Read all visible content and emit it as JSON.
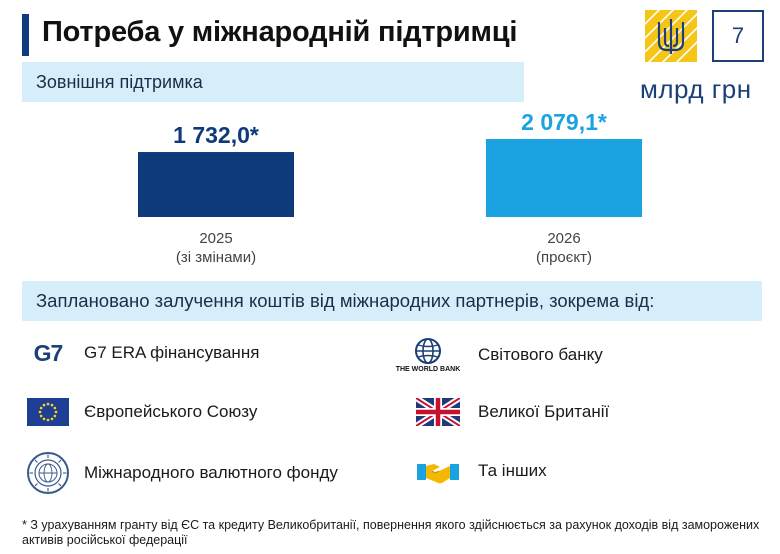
{
  "header": {
    "title": "Потреба у міжнародній підтримці",
    "page_number": "7",
    "unit": "млрд грн"
  },
  "section_external": {
    "label": "Зовнішня підтримка"
  },
  "chart_data": {
    "type": "bar",
    "categories": [
      "2025",
      "2026"
    ],
    "category_notes": [
      "(зі змінами)",
      "(проєкт)"
    ],
    "values": [
      1732.0,
      2079.1
    ],
    "value_labels": [
      "1 732,0*",
      "2 079,1*"
    ],
    "colors": [
      "#0e3a7b",
      "#1aa3e0"
    ]
  },
  "section_partners": {
    "label": "Заплановано залучення коштів від  міжнародних партнерів, зокрема від:"
  },
  "partners": [
    {
      "icon": "g7-logo-icon",
      "icon_text": "G7",
      "label": "G7 ERA фінансування"
    },
    {
      "icon": "world-bank-logo-icon",
      "icon_text": "THE WORLD BANK",
      "label": "Світового банку"
    },
    {
      "icon": "eu-flag-icon",
      "label": "Європейського Союзу"
    },
    {
      "icon": "uk-flag-icon",
      "label": "Великої Британії"
    },
    {
      "icon": "imf-seal-icon",
      "label": "Міжнародного валютного фонду"
    },
    {
      "icon": "handshake-icon",
      "label": "Та інших"
    }
  ],
  "footnote": "* З урахуванням гранту від ЄС та кредиту Великобританії, повернення якого здійснюється за рахунок доходів від заморожених активів російської федерації",
  "colors": {
    "navy": "#0e3a7b",
    "sky": "#1aa3e0",
    "band": "#d6eef9",
    "gold": "#f5c518"
  }
}
